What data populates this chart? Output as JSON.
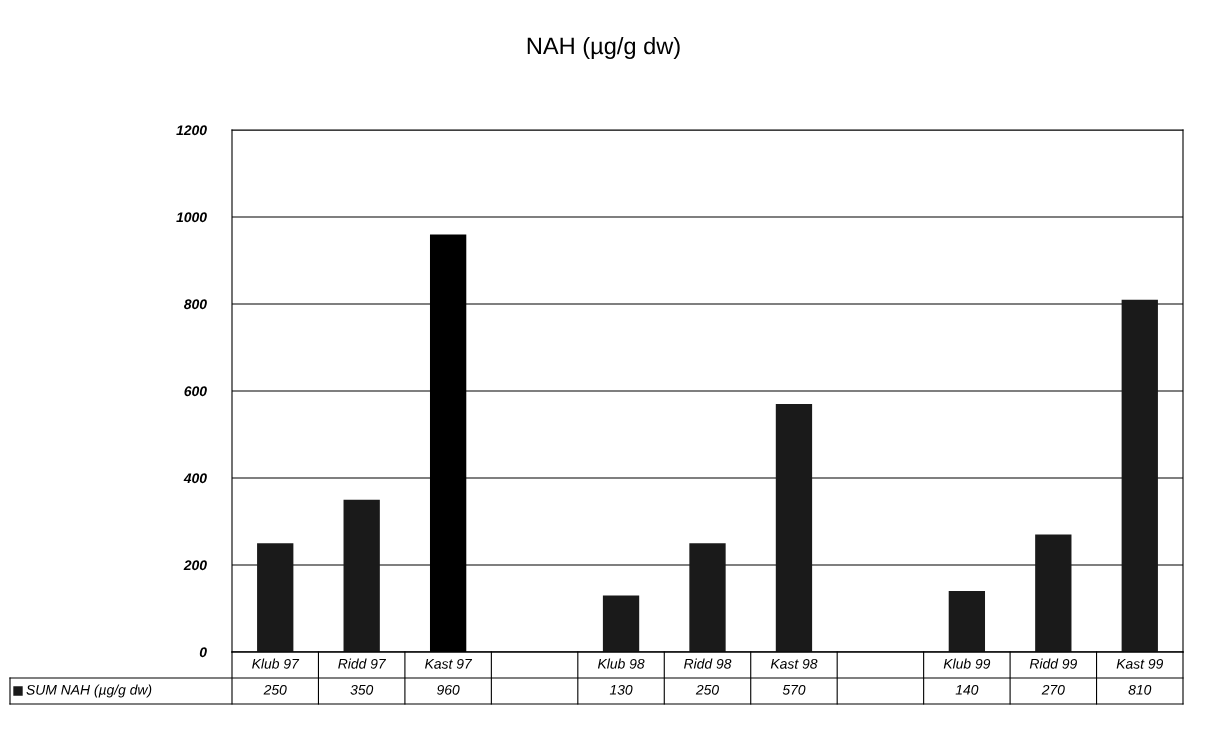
{
  "chart_data": {
    "type": "bar",
    "title": "NAH (µg/g dw)",
    "categories": [
      "Klub 97",
      "Ridd 97",
      "Kast 97",
      null,
      "Klub 98",
      "Ridd 98",
      "Kast 98",
      null,
      "Klub 99",
      "Ridd 99",
      "Kast 99"
    ],
    "series": [
      {
        "name": "SUM NAH (µg/g dw)",
        "color": "#1a1a1a",
        "colors": [
          "#1a1a1a",
          "#1a1a1a",
          "#000000",
          null,
          "#1a1a1a",
          "#1a1a1a",
          "#1a1a1a",
          null,
          "#1a1a1a",
          "#1a1a1a",
          "#1a1a1a"
        ],
        "values": [
          250,
          350,
          960,
          null,
          130,
          250,
          570,
          null,
          140,
          270,
          810
        ]
      }
    ],
    "ylim": [
      0,
      1200
    ],
    "yticks": [
      0,
      200,
      400,
      600,
      800,
      1000,
      1200
    ],
    "grid": "y",
    "legend": "bottom",
    "data_labels": true
  }
}
